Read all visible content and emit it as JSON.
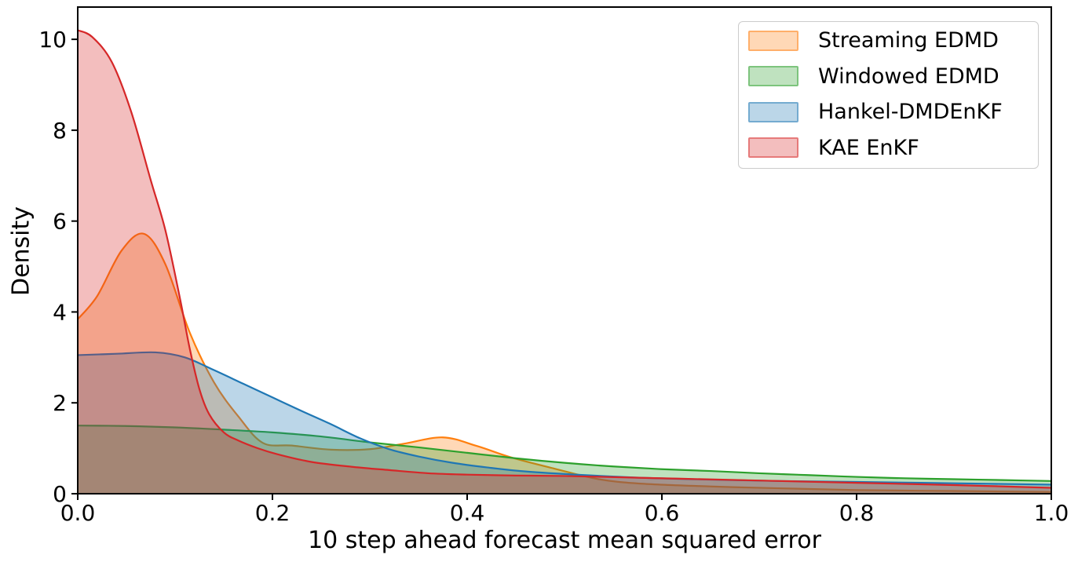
{
  "chart_data": {
    "type": "area",
    "title": "",
    "xlabel": "10 step ahead forecast mean squared error",
    "ylabel": "Density",
    "xlim": [
      0.0,
      1.0
    ],
    "ylim": [
      0,
      10.71
    ],
    "xtick_values": [
      0.0,
      0.2,
      0.4,
      0.6,
      0.8,
      1.0
    ],
    "xtick_labels": [
      "0.0",
      "0.2",
      "0.4",
      "0.6",
      "0.8",
      "1.0"
    ],
    "ytick_values": [
      0,
      2,
      4,
      6,
      8,
      10
    ],
    "ytick_labels": [
      "0",
      "2",
      "4",
      "6",
      "8",
      "10"
    ],
    "grid": false,
    "legend_position": "upper right",
    "fill_alpha": 0.3,
    "frame_color": "#000000",
    "series": [
      {
        "name": "Streaming EDMD",
        "color": "#ff7f0e",
        "x": [
          0,
          0.02,
          0.045,
          0.068,
          0.09,
          0.115,
          0.14,
          0.165,
          0.19,
          0.22,
          0.26,
          0.3,
          0.335,
          0.375,
          0.41,
          0.445,
          0.49,
          0.535,
          0.58,
          0.65,
          0.72,
          0.8,
          0.9,
          1.0
        ],
        "y": [
          3.84,
          4.35,
          5.35,
          5.72,
          5.05,
          3.55,
          2.45,
          1.7,
          1.12,
          1.06,
          0.97,
          0.98,
          1.1,
          1.24,
          1.05,
          0.8,
          0.55,
          0.32,
          0.22,
          0.16,
          0.12,
          0.08,
          0.06,
          0.04
        ]
      },
      {
        "name": "Windowed EDMD",
        "color": "#2ca02c",
        "x": [
          0,
          0.05,
          0.1,
          0.15,
          0.2,
          0.25,
          0.3,
          0.35,
          0.4,
          0.45,
          0.5,
          0.55,
          0.6,
          0.65,
          0.7,
          0.75,
          0.8,
          0.85,
          0.9,
          0.95,
          1.0
        ],
        "y": [
          1.5,
          1.49,
          1.46,
          1.41,
          1.35,
          1.26,
          1.13,
          1.02,
          0.9,
          0.78,
          0.68,
          0.6,
          0.54,
          0.5,
          0.45,
          0.41,
          0.37,
          0.34,
          0.32,
          0.3,
          0.28
        ]
      },
      {
        "name": "Hankel-DMDEnKF",
        "color": "#1f77b4",
        "x": [
          0,
          0.04,
          0.08,
          0.11,
          0.14,
          0.17,
          0.2,
          0.23,
          0.26,
          0.29,
          0.32,
          0.35,
          0.385,
          0.42,
          0.46,
          0.52,
          0.58,
          0.65,
          0.72,
          0.8,
          0.9,
          1.0
        ],
        "y": [
          3.05,
          3.08,
          3.11,
          3.0,
          2.72,
          2.42,
          2.12,
          1.82,
          1.53,
          1.22,
          0.98,
          0.82,
          0.68,
          0.58,
          0.49,
          0.41,
          0.35,
          0.31,
          0.28,
          0.26,
          0.23,
          0.2
        ]
      },
      {
        "name": "KAE EnKF",
        "color": "#d62728",
        "x": [
          0,
          0.015,
          0.035,
          0.055,
          0.075,
          0.09,
          0.105,
          0.115,
          0.125,
          0.135,
          0.15,
          0.165,
          0.185,
          0.205,
          0.24,
          0.283,
          0.32,
          0.36,
          0.4,
          0.45,
          0.5,
          0.56,
          0.62,
          0.7,
          0.8,
          0.9,
          1.0
        ],
        "y": [
          10.2,
          10.05,
          9.5,
          8.4,
          6.9,
          5.8,
          4.3,
          3.2,
          2.3,
          1.75,
          1.35,
          1.17,
          1.0,
          0.87,
          0.7,
          0.59,
          0.52,
          0.45,
          0.42,
          0.4,
          0.39,
          0.36,
          0.33,
          0.29,
          0.24,
          0.19,
          0.13
        ]
      }
    ]
  }
}
